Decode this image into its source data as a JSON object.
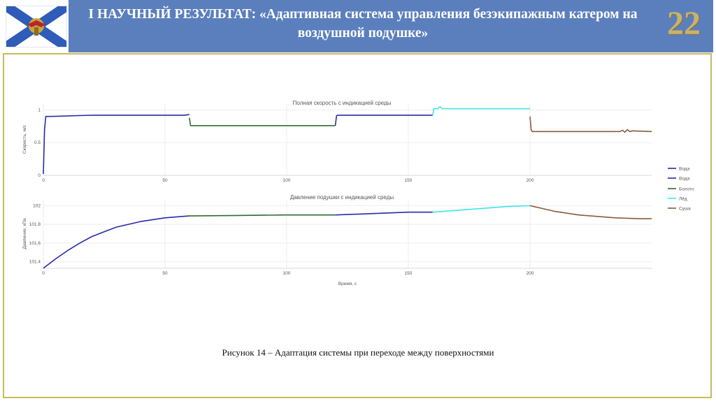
{
  "header": {
    "title": "I НАУЧНЫЙ РЕЗУЛЬТАТ: «Адаптивная система управления безэкипажным катером на воздушной подушке»",
    "slide_number": "22"
  },
  "caption": "Рисунок 14 – Адаптация системы при переходе между поверхностями",
  "colors": {
    "title_bar": "#5b7fbd",
    "frame": "#c8bb5a",
    "water": "#2a2aa8",
    "swamp": "#2f6b2f",
    "ice": "#3ee6e6",
    "land": "#8b5a3c"
  },
  "chart_data": [
    {
      "type": "line",
      "title": "Полная скорость с индикацией среды",
      "xlabel": "",
      "ylabel": "Скорость, м/с",
      "xlim": [
        0,
        250
      ],
      "ylim": [
        0,
        1.1
      ],
      "xticks": [
        0,
        50,
        100,
        150,
        200
      ],
      "yticks": [
        0,
        0.5,
        1
      ],
      "ytick_labels": [
        "0",
        "0.5",
        "1"
      ],
      "grid": true,
      "series": [
        {
          "name": "Вода",
          "color": "#2a2aa8",
          "x": [
            0,
            0.5,
            1,
            3,
            20,
            58,
            60
          ],
          "y": [
            0.02,
            0.7,
            0.9,
            0.9,
            0.92,
            0.92,
            0.93
          ]
        },
        {
          "name": "Болото",
          "color": "#2f6b2f",
          "x": [
            60,
            60.5,
            61,
            120
          ],
          "y": [
            0.88,
            0.76,
            0.76,
            0.76
          ]
        },
        {
          "name": "Вода",
          "color": "#2a2aa8",
          "x": [
            120,
            120.5,
            121,
            160
          ],
          "y": [
            0.76,
            0.91,
            0.92,
            0.92
          ]
        },
        {
          "name": "Лёд",
          "color": "#3ee6e6",
          "x": [
            160,
            160.5,
            162,
            163,
            164,
            200
          ],
          "y": [
            0.92,
            1.02,
            1.02,
            1.05,
            1.02,
            1.02
          ]
        },
        {
          "name": "Суша",
          "color": "#8b5a3c",
          "x": [
            200,
            200.5,
            201,
            237,
            238,
            239,
            240,
            241,
            242,
            250
          ],
          "y": [
            0.9,
            0.69,
            0.67,
            0.67,
            0.69,
            0.66,
            0.7,
            0.67,
            0.68,
            0.67
          ]
        }
      ],
      "legend": "right"
    },
    {
      "type": "line",
      "title": "Давление подушки с индикацией среды",
      "xlabel": "Время, с",
      "ylabel": "Давление, кПа",
      "xlim": [
        0,
        250
      ],
      "ylim": [
        101.33,
        102.07
      ],
      "xticks": [
        0,
        50,
        100,
        150,
        200
      ],
      "yticks": [
        101.4,
        101.6,
        101.8,
        102
      ],
      "ytick_labels": [
        "101.4",
        "101.6",
        "101.8",
        "102"
      ],
      "grid": true,
      "series": [
        {
          "name": "Вода",
          "color": "#2a2aa8",
          "x": [
            0,
            5,
            10,
            15,
            20,
            25,
            30,
            35,
            40,
            45,
            50,
            55,
            60
          ],
          "y": [
            101.33,
            101.43,
            101.52,
            101.6,
            101.67,
            101.72,
            101.77,
            101.8,
            101.83,
            101.85,
            101.87,
            101.88,
            101.89
          ]
        },
        {
          "name": "Болото",
          "color": "#2f6b2f",
          "x": [
            60,
            80,
            100,
            120
          ],
          "y": [
            101.89,
            101.895,
            101.9,
            101.9
          ]
        },
        {
          "name": "Вода",
          "color": "#2a2aa8",
          "x": [
            120,
            130,
            140,
            150,
            160
          ],
          "y": [
            101.9,
            101.91,
            101.92,
            101.93,
            101.93
          ]
        },
        {
          "name": "Лёд",
          "color": "#3ee6e6",
          "x": [
            160,
            170,
            180,
            190,
            200
          ],
          "y": [
            101.93,
            101.95,
            101.97,
            101.99,
            102.0
          ]
        },
        {
          "name": "Суша",
          "color": "#8b5a3c",
          "x": [
            200,
            205,
            210,
            215,
            220,
            225,
            230,
            235,
            240,
            245,
            250
          ],
          "y": [
            102.0,
            101.97,
            101.94,
            101.92,
            101.9,
            101.89,
            101.88,
            101.87,
            101.865,
            101.86,
            101.86
          ]
        }
      ]
    }
  ],
  "legend": [
    {
      "label": "Вода",
      "color": "#2a2aa8"
    },
    {
      "label": "Вода",
      "color": "#2a2aa8"
    },
    {
      "label": "Болото",
      "color": "#2f6b2f"
    },
    {
      "label": "Лёд",
      "color": "#3ee6e6"
    },
    {
      "label": "Суша",
      "color": "#8b5a3c"
    }
  ]
}
